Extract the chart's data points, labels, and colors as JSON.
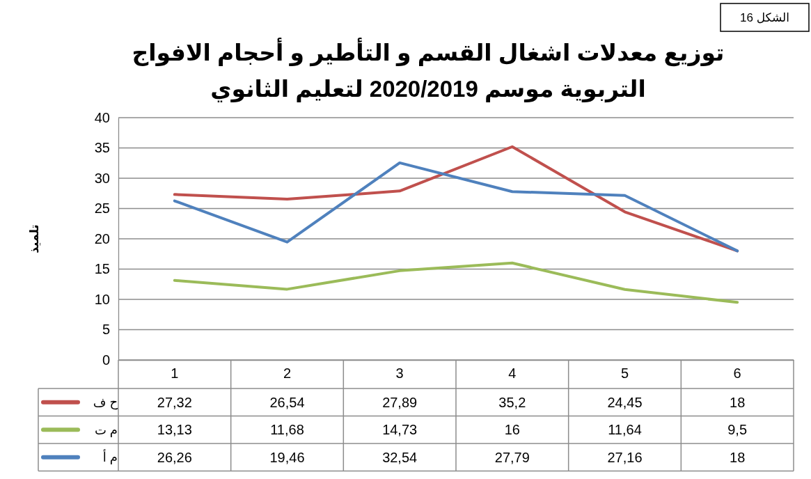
{
  "chart_data": {
    "type": "line",
    "title": "توزيع معدلات اشغال القسم و التأطير و أحجام الافواج التربوية موسم 2020/2019 لتعليم الثانوي",
    "ylabel": "تلميذ",
    "annotations": [
      "الشكل 16"
    ],
    "categories": [
      "1",
      "2",
      "3",
      "4",
      "5",
      "6"
    ],
    "series": [
      {
        "name": "ح ف",
        "color": "#c0504d",
        "values": [
          27.32,
          26.54,
          27.89,
          35.2,
          24.45,
          18
        ],
        "value_labels": [
          "27,32",
          "26,54",
          "27,89",
          "35,2",
          "24,45",
          "18"
        ]
      },
      {
        "name": "م ت",
        "color": "#9bbb59",
        "values": [
          13.13,
          11.68,
          14.73,
          16,
          11.64,
          9.5
        ],
        "value_labels": [
          "13,13",
          "11,68",
          "14,73",
          "16",
          "11,64",
          "9,5"
        ]
      },
      {
        "name": "م أ",
        "color": "#4f81bd",
        "values": [
          26.26,
          19.46,
          32.54,
          27.79,
          27.16,
          18
        ],
        "value_labels": [
          "26,26",
          "19,46",
          "32,54",
          "27,79",
          "27,16",
          "18"
        ]
      }
    ],
    "ylim": [
      0,
      40
    ],
    "yticks": [
      0,
      5,
      10,
      15,
      20,
      25,
      30,
      35,
      40
    ],
    "grid": "y",
    "legend": "bottom left"
  }
}
